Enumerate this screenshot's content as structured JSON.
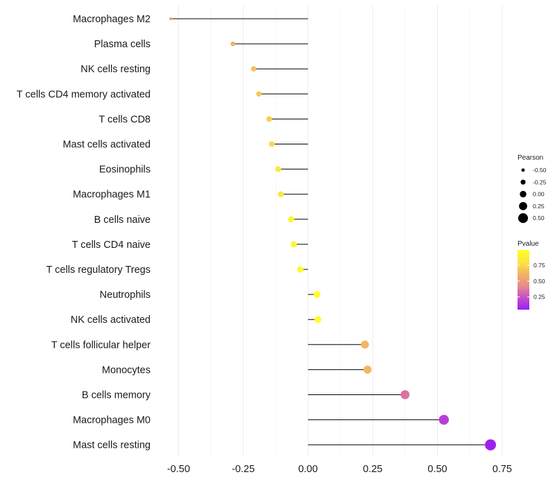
{
  "chart_data": {
    "type": "lollipop",
    "title": "",
    "xlabel": "",
    "ylabel": "",
    "xlim": [
      -0.56,
      0.78
    ],
    "x_ticks": [
      -0.5,
      -0.25,
      0.0,
      0.25,
      0.5,
      0.75
    ],
    "x_tick_labels": [
      "-0.50",
      "-0.25",
      "0.00",
      "0.25",
      "0.50",
      "0.75"
    ],
    "categories": [
      "Macrophages M2",
      "Plasma cells",
      "NK cells resting",
      "T cells CD4 memory activated",
      "T cells CD8",
      "Mast cells activated",
      "Eosinophils",
      "Macrophages M1",
      "B cells naive",
      "T cells CD4 naive",
      "T cells regulatory  Tregs",
      "Neutrophils",
      "NK cells activated",
      "T cells follicular helper",
      "Monocytes",
      "B cells memory",
      "Macrophages M0",
      "Mast cells resting"
    ],
    "values": [
      -0.53,
      -0.29,
      -0.21,
      -0.19,
      -0.15,
      -0.14,
      -0.115,
      -0.105,
      -0.065,
      -0.055,
      -0.03,
      0.035,
      0.038,
      0.22,
      0.23,
      0.375,
      0.525,
      0.705
    ],
    "pvalues": [
      0.55,
      0.6,
      0.66,
      0.7,
      0.72,
      0.76,
      0.82,
      0.82,
      0.9,
      0.92,
      0.95,
      0.98,
      0.98,
      0.62,
      0.62,
      0.35,
      0.18,
      0.06
    ],
    "size_legend": {
      "title": "Pearson",
      "values": [
        -0.5,
        -0.25,
        0.0,
        0.25,
        0.5
      ],
      "labels": [
        "-0.50",
        "-0.25",
        "0.00",
        "0.25",
        "0.50"
      ]
    },
    "color_legend": {
      "title": "Pvalue",
      "tick_values": [
        0.25,
        0.5,
        0.75
      ],
      "tick_labels": [
        "0.25",
        "0.50",
        "0.75"
      ],
      "range": [
        0.05,
        0.99
      ],
      "colors": [
        "#9b1ef0",
        "#c44fc8",
        "#e98c8c",
        "#f2b463",
        "#fbe640",
        "#ffff25"
      ]
    },
    "legend_position": "right"
  }
}
